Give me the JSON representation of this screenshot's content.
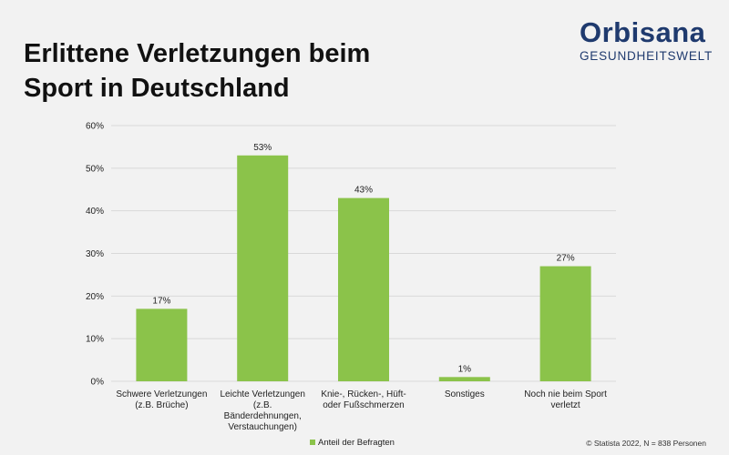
{
  "title": {
    "line1": "Erlittene Verletzungen beim",
    "line2": "Sport in Deutschland"
  },
  "logo": {
    "name": "Orbisana",
    "tagline": "GESUNDHEITSWELT",
    "color_primary": "#1f3a6e",
    "color_accent": "#8dc63f"
  },
  "source": "© Statista 2022, N = 838 Personen",
  "colors": {
    "bar": "#8bc34a",
    "grid": "#d9d9d9",
    "text": "#222222"
  },
  "chart_data": {
    "type": "bar",
    "categories": [
      [
        "Schwere Verletzungen",
        "(z.B. Brüche)"
      ],
      [
        "Leichte Verletzungen",
        "(z.B.",
        "Bänderdehnungen,",
        "Verstauchungen)"
      ],
      [
        "Knie-, Rücken-, Hüft-",
        "oder Fußschmerzen"
      ],
      [
        "Sonstiges"
      ],
      [
        "Noch nie beim Sport",
        "verletzt"
      ]
    ],
    "values": [
      17,
      53,
      43,
      1,
      27
    ],
    "data_labels": [
      "17%",
      "53%",
      "43%",
      "1%",
      "27%"
    ],
    "ylim": [
      0,
      60
    ],
    "yticks": [
      "0%",
      "10%",
      "20%",
      "30%",
      "40%",
      "50%",
      "60%"
    ],
    "series": [
      {
        "name": "Anteil der Befragten",
        "values": [
          17,
          53,
          43,
          1,
          27
        ]
      }
    ],
    "legend_position": "bottom",
    "grid": true
  }
}
